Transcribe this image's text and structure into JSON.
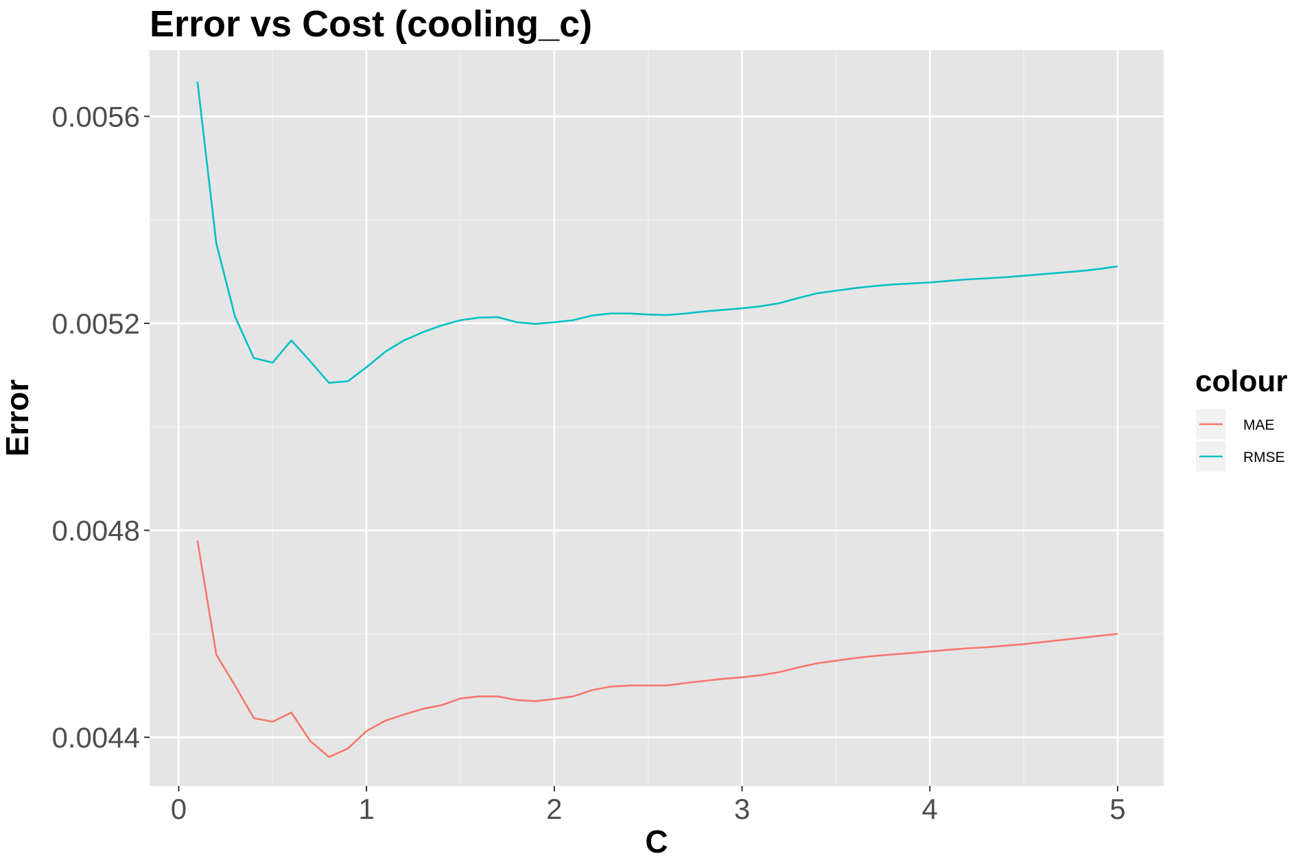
{
  "chart_data": {
    "type": "line",
    "title": "Error vs Cost (cooling_c)",
    "xlabel": "C",
    "ylabel": "Error",
    "xlim": [
      -0.155,
      5.245
    ],
    "ylim": [
      0.004306,
      0.005728
    ],
    "x_ticks": [
      0,
      1,
      2,
      3,
      4,
      5
    ],
    "x_tick_labels": [
      "0",
      "1",
      "2",
      "3",
      "4",
      "5"
    ],
    "y_ticks": [
      0.0044,
      0.0048,
      0.0052,
      0.0056
    ],
    "y_tick_labels": [
      "0.0044",
      "0.0048",
      "0.0052",
      "0.0056"
    ],
    "grid": true,
    "background": "#e5e5e5",
    "legend": {
      "title": "colour",
      "position": "right",
      "entries": [
        "MAE",
        "RMSE"
      ]
    },
    "x": [
      0.1,
      0.2,
      0.3,
      0.4,
      0.5,
      0.6,
      0.7,
      0.8,
      0.9,
      1.0,
      1.1,
      1.2,
      1.3,
      1.4,
      1.5,
      1.6,
      1.7,
      1.8,
      1.9,
      2.0,
      2.1,
      2.2,
      2.3,
      2.4,
      2.5,
      2.6,
      2.7,
      2.8,
      2.9,
      3.0,
      3.1,
      3.2,
      3.3,
      3.4,
      3.5,
      3.6,
      3.7,
      3.8,
      3.9,
      4.0,
      4.1,
      4.2,
      4.3,
      4.4,
      4.5,
      4.6,
      4.7,
      4.8,
      4.9,
      5.0
    ],
    "series": [
      {
        "name": "MAE",
        "color": "#f8766d",
        "values": [
          0.00478,
          0.00456,
          0.0045,
          0.004437,
          0.00443,
          0.004448,
          0.004393,
          0.004362,
          0.004378,
          0.004412,
          0.004432,
          0.004444,
          0.004455,
          0.004462,
          0.004475,
          0.004479,
          0.004479,
          0.004472,
          0.00447,
          0.004474,
          0.004479,
          0.004491,
          0.004498,
          0.0045,
          0.0045,
          0.0045,
          0.004505,
          0.004509,
          0.004513,
          0.004516,
          0.00452,
          0.004526,
          0.004535,
          0.004543,
          0.004548,
          0.004553,
          0.004557,
          0.00456,
          0.004563,
          0.004566,
          0.004569,
          0.004572,
          0.004574,
          0.004577,
          0.00458,
          0.004584,
          0.004588,
          0.004592,
          0.004596,
          0.0046
        ]
      },
      {
        "name": "RMSE",
        "color": "#00bfc4",
        "values": [
          0.005667,
          0.005355,
          0.005213,
          0.005133,
          0.005124,
          0.005167,
          0.005127,
          0.005085,
          0.005088,
          0.005115,
          0.005145,
          0.005167,
          0.005183,
          0.005196,
          0.005206,
          0.005211,
          0.005212,
          0.005202,
          0.005199,
          0.005202,
          0.005206,
          0.005215,
          0.005219,
          0.005219,
          0.005217,
          0.005216,
          0.005219,
          0.005223,
          0.005226,
          0.005229,
          0.005233,
          0.005239,
          0.005249,
          0.005258,
          0.005263,
          0.005268,
          0.005272,
          0.005275,
          0.005277,
          0.005279,
          0.005282,
          0.005285,
          0.005287,
          0.005289,
          0.005292,
          0.005295,
          0.005298,
          0.005301,
          0.005305,
          0.00531
        ]
      }
    ]
  }
}
